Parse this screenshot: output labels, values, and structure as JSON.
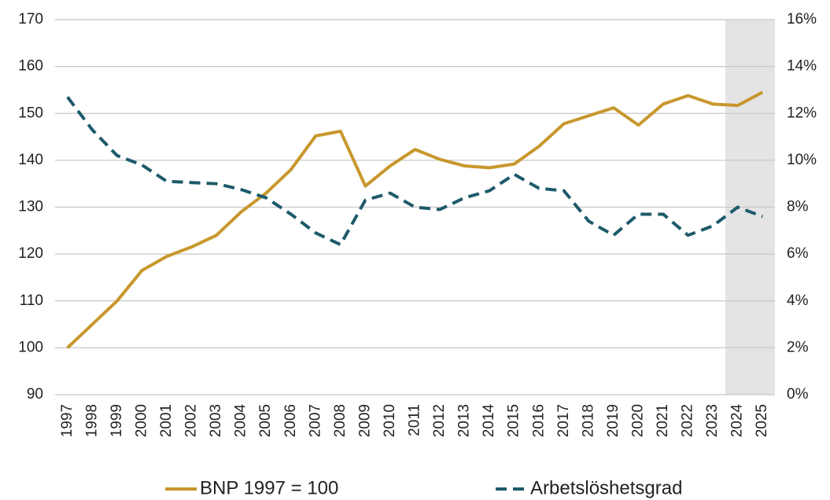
{
  "chart_data": {
    "type": "line",
    "categories": [
      "1997",
      "1998",
      "1999",
      "2000",
      "2001",
      "2002",
      "2003",
      "2004",
      "2005",
      "2006",
      "2007",
      "2008",
      "2009",
      "2010",
      "2011",
      "2012",
      "2013",
      "2014",
      "2015",
      "2016",
      "2017",
      "2018",
      "2019",
      "2020",
      "2021",
      "2022",
      "2023",
      "2024",
      "2025"
    ],
    "series": [
      {
        "name": "BNP 1997 = 100",
        "color": "#c8972c",
        "style": "solid",
        "values": [
          100,
          105,
          110,
          116.5,
          119.5,
          121.5,
          124,
          129,
          133,
          138,
          145.2,
          146.2,
          134.5,
          138.8,
          142.3,
          140.2,
          138.8,
          138.4,
          139.2,
          143,
          147.8,
          149.5,
          151.2,
          147.5,
          152,
          153.8,
          152,
          151.7,
          154.5
        ]
      },
      {
        "name": "Arbetslöshetsgrad",
        "color": "#1d5a6a",
        "style": "dashed",
        "axis": "y2",
        "values": [
          12.7,
          11.3,
          10.2,
          9.8,
          9.1,
          9.05,
          9.0,
          8.75,
          8.4,
          7.7,
          6.9,
          6.4,
          8.3,
          8.6,
          8.0,
          7.9,
          8.4,
          8.7,
          9.4,
          8.8,
          8.7,
          7.4,
          6.8,
          7.7,
          7.7,
          6.8,
          7.2,
          8.0,
          7.6
        ]
      }
    ],
    "ylim": [
      90,
      170
    ],
    "yticks": [
      90,
      100,
      110,
      120,
      130,
      140,
      150,
      160,
      170
    ],
    "y2lim": [
      0,
      16
    ],
    "y2ticks": [
      {
        "value": 0,
        "label": "0%"
      },
      {
        "value": 2,
        "label": "2%"
      },
      {
        "value": 4,
        "label": "4%"
      },
      {
        "value": 6,
        "label": "6%"
      },
      {
        "value": 8,
        "label": "8%"
      },
      {
        "value": 10,
        "label": "10%"
      },
      {
        "value": 12,
        "label": "12%"
      },
      {
        "value": 14,
        "label": "14%"
      },
      {
        "value": 16,
        "label": "16%"
      }
    ],
    "grid": true,
    "legend": "bottom",
    "shaded": {
      "from": "2024",
      "color": "#e4e4e4"
    }
  }
}
